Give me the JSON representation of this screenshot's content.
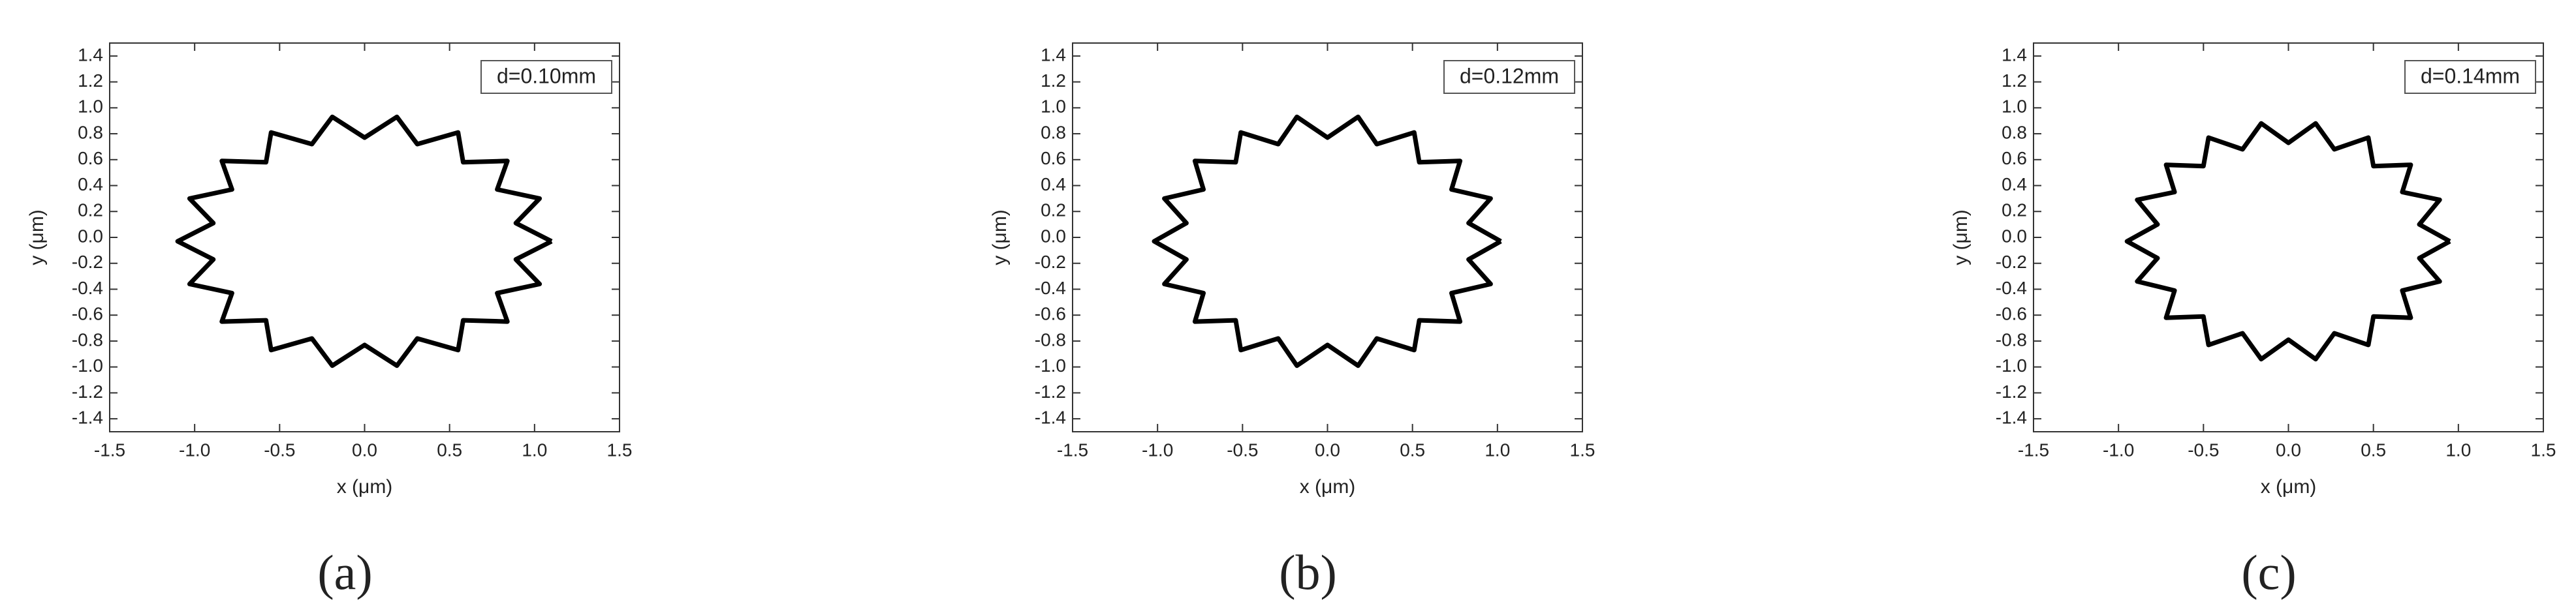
{
  "chart_data": [
    {
      "type": "line",
      "annotation": "d=0.10mm",
      "xlabel": "x (μm)",
      "ylabel": "y (μm)",
      "panel_label": "(a)",
      "color": "#000000",
      "xlim": [
        -1.5,
        1.5
      ],
      "ylim": [
        -1.5,
        1.5
      ],
      "xticks": [
        -1.5,
        {
          "value": -1,
          "label": "-1.0"
        },
        -0.5,
        {
          "value": 0,
          "label": "0.0"
        },
        0.5,
        {
          "value": 1,
          "label": "1.0"
        },
        1.5
      ],
      "yticks": [
        -1.4,
        -1.2,
        {
          "value": -1,
          "label": "-1.0"
        },
        -0.8,
        -0.6,
        -0.4,
        -0.2,
        {
          "value": 0,
          "label": "0.0"
        },
        0.2,
        0.4,
        0.6,
        0.8,
        {
          "value": 1,
          "label": "1.0"
        },
        1.2,
        1.4
      ],
      "x": [
        1.1,
        0.89,
        1.03,
        0.78,
        0.84,
        0.58,
        0.55,
        0.31,
        0.19,
        0,
        -0.19,
        -0.31,
        -0.55,
        -0.58,
        -0.84,
        -0.78,
        -1.03,
        -0.89,
        -1.1,
        -0.89,
        -1.03,
        -0.78,
        -0.84,
        -0.58,
        -0.55,
        -0.31,
        -0.19,
        0,
        0.19,
        0.31,
        0.55,
        0.58,
        0.84,
        0.78,
        1.03,
        0.89,
        1.1
      ],
      "values": [
        -0.03,
        0.11,
        0.3,
        0.37,
        0.59,
        0.58,
        0.81,
        0.72,
        0.93,
        0.77,
        0.93,
        0.72,
        0.81,
        0.58,
        0.59,
        0.37,
        0.3,
        0.11,
        -0.03,
        -0.17,
        -0.36,
        -0.43,
        -0.65,
        -0.64,
        -0.87,
        -0.78,
        -0.99,
        -0.83,
        -0.99,
        -0.78,
        -0.87,
        -0.64,
        -0.65,
        -0.43,
        -0.36,
        -0.17,
        -0.03
      ]
    },
    {
      "type": "line",
      "annotation": "d=0.12mm",
      "xlabel": "x (μm)",
      "ylabel": "y (μm)",
      "panel_label": "(b)",
      "color": "#000000",
      "xlim": [
        -1.5,
        1.5
      ],
      "ylim": [
        -1.5,
        1.5
      ],
      "xticks": [
        -1.5,
        {
          "value": -1,
          "label": "-1.0"
        },
        -0.5,
        {
          "value": 0,
          "label": "0.0"
        },
        0.5,
        {
          "value": 1,
          "label": "1.0"
        },
        1.5
      ],
      "yticks": [
        -1.4,
        -1.2,
        {
          "value": -1,
          "label": "-1.0"
        },
        -0.8,
        -0.6,
        -0.4,
        -0.2,
        {
          "value": 0,
          "label": "0.0"
        },
        0.2,
        0.4,
        0.6,
        0.8,
        {
          "value": 1,
          "label": "1.0"
        },
        1.2,
        1.4
      ],
      "x": [
        1.02,
        0.83,
        0.96,
        0.73,
        0.78,
        0.54,
        0.51,
        0.29,
        0.18,
        0,
        -0.18,
        -0.29,
        -0.51,
        -0.54,
        -0.78,
        -0.73,
        -0.96,
        -0.83,
        -1.02,
        -0.83,
        -0.96,
        -0.73,
        -0.78,
        -0.54,
        -0.51,
        -0.29,
        -0.18,
        0,
        0.18,
        0.29,
        0.51,
        0.54,
        0.78,
        0.73,
        0.96,
        0.83,
        1.02
      ],
      "values": [
        -0.03,
        0.11,
        0.3,
        0.37,
        0.59,
        0.58,
        0.81,
        0.72,
        0.93,
        0.77,
        0.93,
        0.72,
        0.81,
        0.58,
        0.59,
        0.37,
        0.3,
        0.11,
        -0.03,
        -0.17,
        -0.36,
        -0.43,
        -0.65,
        -0.64,
        -0.87,
        -0.78,
        -0.99,
        -0.83,
        -0.99,
        -0.78,
        -0.87,
        -0.64,
        -0.65,
        -0.43,
        -0.36,
        -0.17,
        -0.03
      ]
    },
    {
      "type": "line",
      "annotation": "d=0.14mm",
      "xlabel": "x (μm)",
      "ylabel": "y (μm)",
      "panel_label": "(c)",
      "color": "#000000",
      "xlim": [
        -1.5,
        1.5
      ],
      "ylim": [
        -1.5,
        1.5
      ],
      "xticks": [
        -1.5,
        {
          "value": -1,
          "label": "-1.0"
        },
        -0.5,
        {
          "value": 0,
          "label": "0.0"
        },
        0.5,
        {
          "value": 1,
          "label": "1.0"
        },
        1.5
      ],
      "yticks": [
        -1.4,
        -1.2,
        {
          "value": -1,
          "label": "-1.0"
        },
        -0.8,
        -0.6,
        -0.4,
        -0.2,
        {
          "value": 0,
          "label": "0.0"
        },
        0.2,
        0.4,
        0.6,
        0.8,
        {
          "value": 1,
          "label": "1.0"
        },
        1.2,
        1.4
      ],
      "x": [
        0.95,
        0.77,
        0.89,
        0.67,
        0.72,
        0.5,
        0.47,
        0.27,
        0.16,
        0,
        -0.16,
        -0.27,
        -0.47,
        -0.5,
        -0.72,
        -0.67,
        -0.89,
        -0.77,
        -0.95,
        -0.77,
        -0.89,
        -0.67,
        -0.72,
        -0.5,
        -0.47,
        -0.27,
        -0.16,
        0,
        0.16,
        0.27,
        0.47,
        0.5,
        0.72,
        0.67,
        0.89,
        0.77,
        0.95
      ],
      "values": [
        -0.03,
        0.1,
        0.29,
        0.35,
        0.56,
        0.55,
        0.77,
        0.68,
        0.88,
        0.73,
        0.88,
        0.68,
        0.77,
        0.55,
        0.56,
        0.35,
        0.29,
        0.1,
        -0.03,
        -0.16,
        -0.34,
        -0.41,
        -0.62,
        -0.61,
        -0.83,
        -0.74,
        -0.94,
        -0.79,
        -0.94,
        -0.74,
        -0.83,
        -0.61,
        -0.62,
        -0.41,
        -0.34,
        -0.16,
        -0.03
      ]
    }
  ]
}
